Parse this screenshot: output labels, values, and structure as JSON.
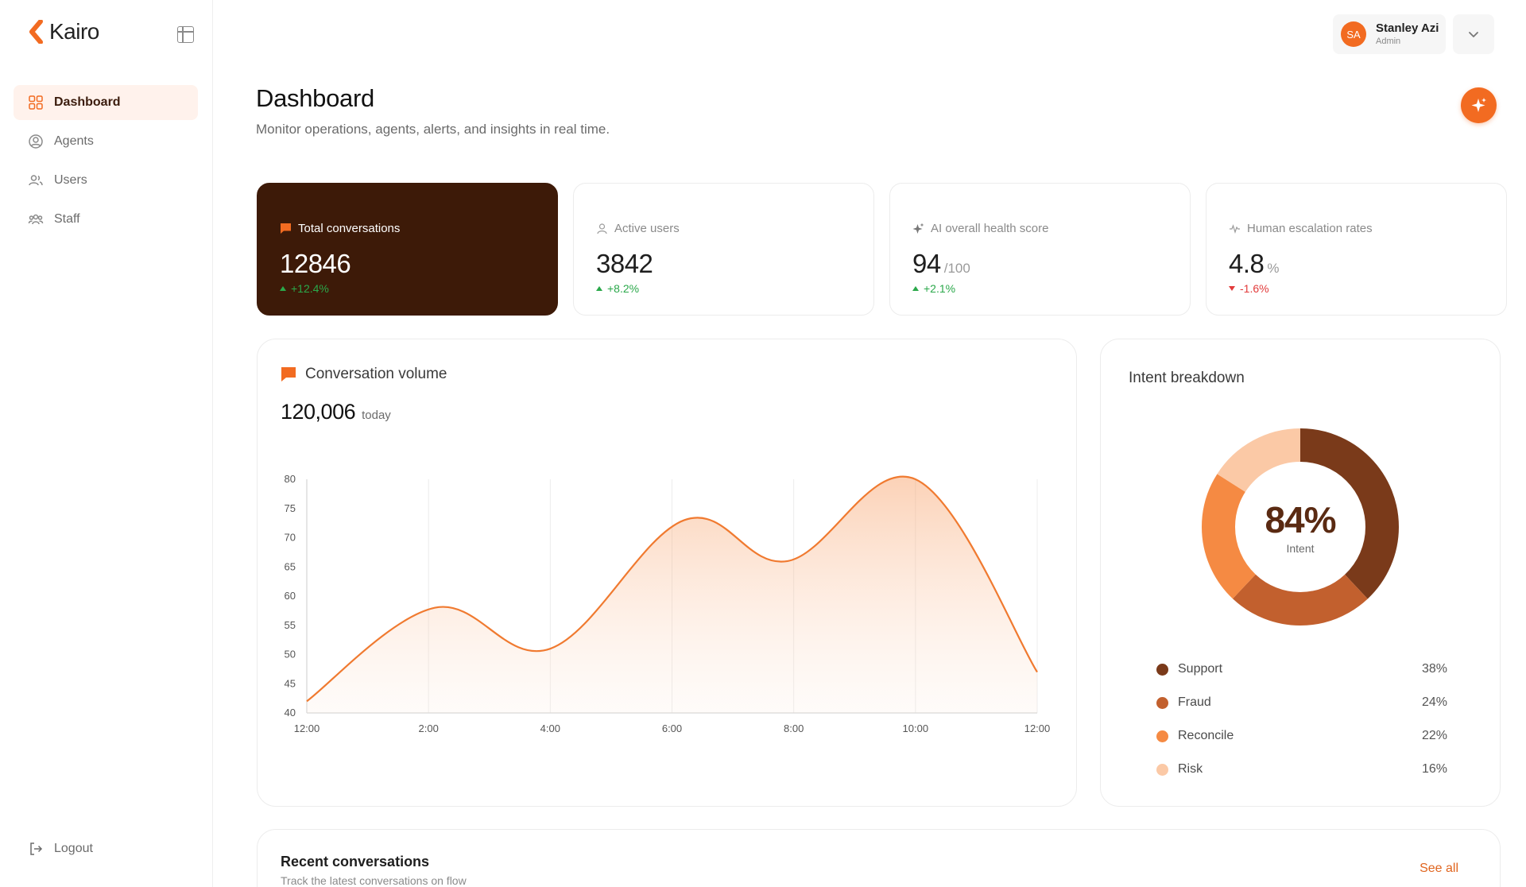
{
  "app": {
    "name": "Kairo"
  },
  "sidebar": {
    "items": [
      {
        "label": "Dashboard",
        "icon": "grid-icon",
        "active": true
      },
      {
        "label": "Agents",
        "icon": "user-circle-icon",
        "active": false
      },
      {
        "label": "Users",
        "icon": "users-icon",
        "active": false
      },
      {
        "label": "Staff",
        "icon": "team-icon",
        "active": false
      }
    ],
    "logout_label": "Logout"
  },
  "user": {
    "initials": "SA",
    "name": "Stanley Azi",
    "role": "Admin"
  },
  "header": {
    "title": "Dashboard",
    "subtitle": "Monitor operations, agents, alerts, and insights in real time."
  },
  "stats": [
    {
      "label": "Total conversations",
      "value": "12846",
      "suffix": "",
      "change": "+12.4%",
      "direction": "up",
      "icon": "chat-icon"
    },
    {
      "label": "Active users",
      "value": "3842",
      "suffix": "",
      "change": "+8.2%",
      "direction": "up",
      "icon": "user-icon"
    },
    {
      "label": "AI overall health score",
      "value": "94",
      "suffix": "/100",
      "change": "+2.1%",
      "direction": "up",
      "icon": "sparkle-icon"
    },
    {
      "label": "Human escalation rates",
      "value": "4.8",
      "suffix": "%",
      "change": "-1.6%",
      "direction": "down",
      "icon": "pulse-icon"
    }
  ],
  "volume": {
    "title": "Conversation volume",
    "total": "120,006",
    "total_unit": "today"
  },
  "intent": {
    "title": "Intent breakdown",
    "center_value": "84%",
    "center_label": "Intent",
    "items": [
      {
        "name": "Support",
        "pct": "38%",
        "value": 38,
        "color": "#7a3a1a"
      },
      {
        "name": "Fraud",
        "pct": "24%",
        "value": 24,
        "color": "#c2602e"
      },
      {
        "name": "Reconcile",
        "pct": "22%",
        "value": 22,
        "color": "#f58a43"
      },
      {
        "name": "Risk",
        "pct": "16%",
        "value": 16,
        "color": "#fbc9a6"
      }
    ]
  },
  "recent": {
    "title": "Recent conversations",
    "subtitle": "Track the latest conversations on flow",
    "see_all": "See all"
  },
  "colors": {
    "accent": "#f26b21",
    "dark_card": "#3d1a08",
    "up": "#2aa84a",
    "down": "#e23b3b"
  },
  "chart_data": {
    "type": "area",
    "title": "Conversation volume",
    "x": [
      "12:00",
      "2:00",
      "4:00",
      "6:00",
      "8:00",
      "10:00",
      "12:00"
    ],
    "points": [
      {
        "x": 0,
        "y": 42
      },
      {
        "x": 2.1,
        "y": 58
      },
      {
        "x": 4,
        "y": 51
      },
      {
        "x": 6.2,
        "y": 73
      },
      {
        "x": 7.9,
        "y": 66
      },
      {
        "x": 10,
        "y": 80
      },
      {
        "x": 12,
        "y": 47
      }
    ],
    "ylim": [
      40,
      80
    ],
    "yticks": [
      40,
      45,
      50,
      55,
      60,
      65,
      70,
      75,
      80
    ],
    "xlim": [
      0,
      12
    ],
    "grid": "vertical",
    "line_color": "#f07a30"
  }
}
